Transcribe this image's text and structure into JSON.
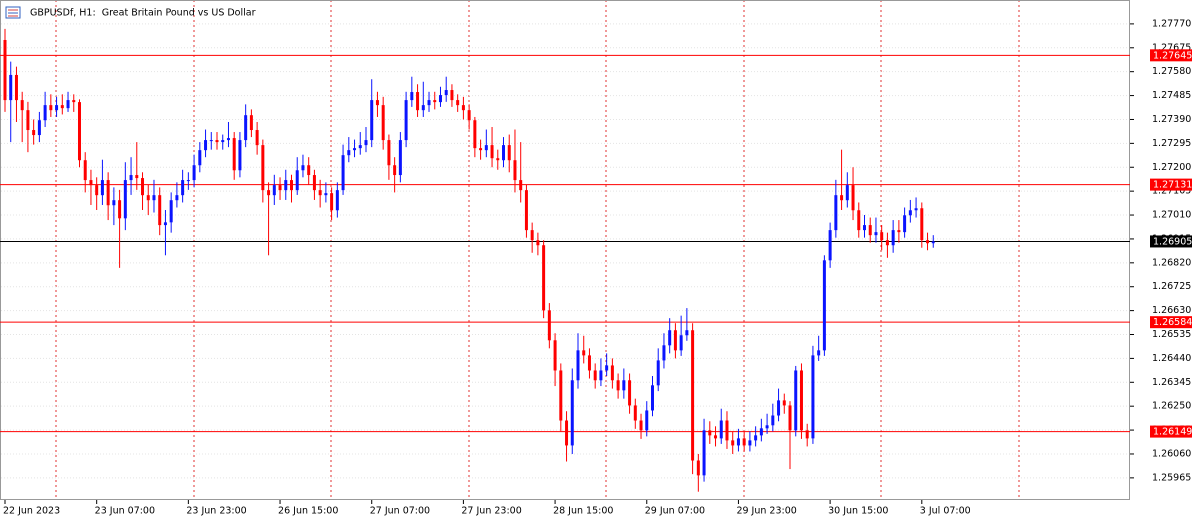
{
  "chart_data": {
    "type": "candlestick",
    "title": "GBPUSDf, H1:  Great Britain Pound vs US Dollar",
    "up_color": "#0a14ff",
    "down_color": "#ff0000",
    "grid": true,
    "ylim": [
      1.25877,
      1.27865
    ],
    "yticks": [
      {
        "value": 1.2777,
        "label": "1.27770"
      },
      1.27675,
      {
        "value": 1.2758,
        "label": "1.27580"
      },
      1.27485,
      {
        "value": 1.2739,
        "label": "1.27390"
      },
      1.27295,
      {
        "value": 1.272,
        "label": "1.27200"
      },
      1.27105,
      {
        "value": 1.2701,
        "label": "1.27010"
      },
      1.26915,
      {
        "value": 1.2682,
        "label": "1.26820"
      },
      1.26725,
      {
        "value": 1.2663,
        "label": "1.26630"
      },
      1.26535,
      {
        "value": 1.2644,
        "label": "1.26440"
      },
      1.26345,
      {
        "value": 1.2625,
        "label": "1.26250"
      },
      1.26155,
      {
        "value": 1.2606,
        "label": "1.26060"
      },
      1.25965
    ],
    "levels": [
      {
        "value": 1.27645,
        "color": "#ff0000"
      },
      {
        "value": 1.27131,
        "color": "#ff0000"
      },
      {
        "value": 1.26905,
        "color": "#000000"
      },
      {
        "value": 1.26584,
        "color": "#ff0000"
      },
      {
        "value": 1.26149,
        "color": "#ff0000"
      }
    ],
    "categories": [
      "22 Jun 2023",
      null,
      null,
      null,
      null,
      null,
      null,
      null,
      null,
      null,
      null,
      null,
      null,
      null,
      null,
      null,
      "23 Jun 07:00",
      null,
      null,
      null,
      null,
      null,
      null,
      null,
      null,
      null,
      null,
      null,
      null,
      null,
      null,
      null,
      "23 Jun 23:00",
      null,
      null,
      null,
      null,
      null,
      null,
      null,
      null,
      null,
      null,
      null,
      null,
      null,
      null,
      null,
      "26 Jun 15:00",
      null,
      null,
      null,
      null,
      null,
      null,
      null,
      null,
      null,
      null,
      null,
      null,
      null,
      null,
      null,
      "27 Jun 07:00",
      null,
      null,
      null,
      null,
      null,
      null,
      null,
      null,
      null,
      null,
      null,
      null,
      null,
      null,
      null,
      "27 Jun 23:00",
      null,
      null,
      null,
      null,
      null,
      null,
      null,
      null,
      null,
      null,
      null,
      null,
      null,
      null,
      null,
      "28 Jun 15:00",
      null,
      null,
      null,
      null,
      null,
      null,
      null,
      null,
      null,
      null,
      null,
      null,
      null,
      null,
      null,
      "29 Jun 07:00",
      null,
      null,
      null,
      null,
      null,
      null,
      null,
      null,
      null,
      null,
      null,
      null,
      null,
      null,
      null,
      "29 Jun 23:00",
      null,
      null,
      null,
      null,
      null,
      null,
      null,
      null,
      null,
      null,
      null,
      null,
      null,
      null,
      null,
      "30 Jun 15:00",
      null,
      null,
      null,
      null,
      null,
      null,
      null,
      null,
      null,
      null,
      null,
      null,
      null,
      null,
      null,
      "3 Jul 07:00",
      null,
      null
    ],
    "open": [
      1.27706,
      1.27467,
      1.27567,
      1.27467,
      1.27427,
      1.27348,
      1.27328,
      1.27387,
      1.27447,
      1.27427,
      1.27447,
      1.27435,
      1.27467,
      1.27459,
      1.27228,
      1.27149,
      1.27129,
      1.27089,
      1.27149,
      1.27049,
      1.27069,
      1.26997,
      1.27149,
      1.27169,
      1.27157,
      1.27089,
      1.27069,
      1.27089,
      1.2697,
      1.26981,
      1.27069,
      1.27089,
      1.27149,
      1.27149,
      1.27208,
      1.27268,
      1.27308,
      1.27308,
      1.273,
      1.27308,
      1.27316,
      1.27188,
      1.27308,
      1.27407,
      1.27348,
      1.27288,
      1.27109,
      1.27089,
      1.27129,
      1.27109,
      1.27149,
      1.27109,
      1.27188,
      1.27208,
      1.27169,
      1.27109,
      1.27089,
      1.27097,
      1.27029,
      1.27109,
      1.27248,
      1.27268,
      1.27276,
      1.27288,
      1.27308,
      1.27467,
      1.27447,
      1.27308,
      1.27208,
      1.27169,
      1.27308,
      1.27467,
      1.27499,
      1.27427,
      1.27447,
      1.27467,
      1.27459,
      1.27487,
      1.27507,
      1.27467,
      1.27447,
      1.27427,
      1.27387,
      1.27276,
      1.27268,
      1.27288,
      1.27236,
      1.27228,
      1.27288,
      1.27228,
      1.27149,
      1.27109,
      1.2695,
      1.2691,
      1.2689,
      1.26631,
      1.26512,
      1.26392,
      1.26193,
      1.26094,
      1.26353,
      1.26472,
      1.26452,
      1.26392,
      1.26353,
      1.26392,
      1.26412,
      1.26353,
      1.26313,
      1.26353,
      1.26253,
      1.26193,
      1.26154,
      1.26233,
      1.26333,
      1.26432,
      1.26492,
      1.26552,
      1.26472,
      1.26532,
      1.26552,
      1.26034,
      1.25975,
      1.26154,
      1.26134,
      1.26122,
      1.26193,
      1.26114,
      1.26094,
      1.26122,
      1.26094,
      1.26114,
      1.26134,
      1.26162,
      1.26174,
      1.26213,
      1.26273,
      1.26253,
      1.26154,
      1.26392,
      1.26154,
      1.26122,
      1.26452,
      1.26472,
      1.2683,
      1.2695,
      1.27089,
      1.27069,
      1.27129,
      1.27029,
      1.2695,
      1.2697,
      1.2693,
      1.26942,
      1.2691,
      1.2689,
      1.2695,
      1.26942,
      1.27009,
      1.27029,
      1.27037,
      1.2691,
      1.26898
    ],
    "high": [
      1.2775,
      1.2762,
      1.276,
      1.275,
      1.2746,
      1.2739,
      1.2742,
      1.275,
      1.2749,
      1.2748,
      1.2749,
      1.275,
      1.2749,
      1.2747,
      1.2726,
      1.2719,
      1.2716,
      1.2723,
      1.2718,
      1.2712,
      1.2711,
      1.2722,
      1.2724,
      1.273,
      1.2718,
      1.2713,
      1.2715,
      1.2712,
      1.2703,
      1.271,
      1.2714,
      1.2719,
      1.2718,
      1.2725,
      1.273,
      1.2735,
      1.2734,
      1.2734,
      1.2733,
      1.2738,
      1.2734,
      1.2734,
      1.2745,
      1.2743,
      1.2738,
      1.2731,
      1.2714,
      1.2717,
      1.2716,
      1.2719,
      1.2717,
      1.2724,
      1.2725,
      1.2724,
      1.2719,
      1.2715,
      1.2714,
      1.2712,
      1.2714,
      1.2729,
      1.2732,
      1.2731,
      1.2734,
      1.2736,
      1.2755,
      1.275,
      1.2748,
      1.2733,
      1.2724,
      1.2734,
      1.275,
      1.2756,
      1.2753,
      1.2754,
      1.275,
      1.275,
      1.2752,
      1.2756,
      1.2753,
      1.2749,
      1.2748,
      1.2745,
      1.274,
      1.2731,
      1.2735,
      1.2736,
      1.2727,
      1.2732,
      1.2733,
      1.2735,
      1.273,
      1.2713,
      1.2698,
      1.2694,
      1.2691,
      1.2666,
      1.2654,
      1.2642,
      1.2623,
      1.264,
      1.2654,
      1.2653,
      1.2648,
      1.2642,
      1.2644,
      1.2646,
      1.2644,
      1.2638,
      1.264,
      1.2638,
      1.2628,
      1.2622,
      1.2627,
      1.2637,
      1.2648,
      1.2654,
      1.266,
      1.2658,
      1.2661,
      1.2664,
      1.2658,
      1.2606,
      1.262,
      1.2619,
      1.2617,
      1.2624,
      1.2623,
      1.2615,
      1.2616,
      1.2615,
      1.2615,
      1.2617,
      1.262,
      1.2622,
      1.2626,
      1.2632,
      1.263,
      1.2627,
      1.2641,
      1.2642,
      1.2618,
      1.2649,
      1.2653,
      1.2685,
      1.2698,
      1.2715,
      1.2727,
      1.2718,
      1.272,
      1.2706,
      1.2701,
      1.27,
      1.27,
      1.2697,
      1.2694,
      1.2699,
      1.2699,
      1.2704,
      1.2707,
      1.2708,
      1.2706,
      1.2694,
      1.2693
    ],
    "low": [
      1.2742,
      1.273,
      1.2738,
      1.273,
      1.2726,
      1.2729,
      1.273,
      1.2736,
      1.274,
      1.274,
      1.2741,
      1.2742,
      1.2742,
      1.272,
      1.271,
      1.2705,
      1.2703,
      1.2705,
      1.2699,
      1.2697,
      1.268,
      1.2695,
      1.2709,
      1.2711,
      1.2703,
      1.2701,
      1.2702,
      1.2693,
      1.2685,
      1.2694,
      1.2704,
      1.2706,
      1.2711,
      1.2712,
      1.2718,
      1.2724,
      1.2727,
      1.2727,
      1.2727,
      1.2728,
      1.2715,
      1.2716,
      1.2728,
      1.2732,
      1.2725,
      1.2706,
      1.2685,
      1.2705,
      1.2707,
      1.2707,
      1.2706,
      1.2709,
      1.2716,
      1.2713,
      1.2707,
      1.2704,
      1.2706,
      1.2699,
      1.27,
      1.2709,
      1.2722,
      1.2724,
      1.2725,
      1.2726,
      1.2728,
      1.274,
      1.2727,
      1.2715,
      1.271,
      1.2714,
      1.2728,
      1.2744,
      1.274,
      1.274,
      1.2742,
      1.2743,
      1.2744,
      1.2746,
      1.2744,
      1.2742,
      1.2739,
      1.2735,
      1.2724,
      1.2723,
      1.2724,
      1.272,
      1.2719,
      1.272,
      1.2718,
      1.271,
      1.2706,
      1.2692,
      1.2686,
      1.2685,
      1.266,
      1.2648,
      1.2633,
      1.2615,
      1.2603,
      1.2606,
      1.2632,
      1.2642,
      1.2636,
      1.2632,
      1.2633,
      1.2637,
      1.2632,
      1.2628,
      1.2628,
      1.2622,
      1.2616,
      1.2612,
      1.2613,
      1.2621,
      1.2631,
      1.264,
      1.2646,
      1.2644,
      1.2645,
      1.2651,
      1.2598,
      1.2591,
      1.2595,
      1.261,
      1.2609,
      1.261,
      1.2608,
      1.2606,
      1.2607,
      1.2607,
      1.2607,
      1.2609,
      1.2611,
      1.2614,
      1.2615,
      1.2619,
      1.2622,
      1.26,
      1.2613,
      1.2612,
      1.2609,
      1.261,
      1.2643,
      1.2645,
      1.268,
      1.2692,
      1.2703,
      1.2704,
      1.2699,
      1.2692,
      1.2692,
      1.269,
      1.269,
      1.2687,
      1.2684,
      1.2686,
      1.269,
      1.2692,
      1.2698,
      1.27,
      1.2688,
      1.2687,
      1.2688
    ],
    "close": [
      1.27467,
      1.27567,
      1.27467,
      1.27427,
      1.27348,
      1.27328,
      1.27387,
      1.27447,
      1.27427,
      1.27447,
      1.27435,
      1.27467,
      1.27459,
      1.27228,
      1.27149,
      1.27129,
      1.27089,
      1.27149,
      1.27049,
      1.27069,
      1.26997,
      1.27149,
      1.27169,
      1.27157,
      1.27089,
      1.27069,
      1.27089,
      1.2697,
      1.26981,
      1.27069,
      1.27089,
      1.27149,
      1.27149,
      1.27208,
      1.27268,
      1.27308,
      1.27308,
      1.273,
      1.27308,
      1.27316,
      1.27188,
      1.27308,
      1.27407,
      1.27348,
      1.27288,
      1.27109,
      1.27089,
      1.27129,
      1.27109,
      1.27149,
      1.27109,
      1.27188,
      1.27208,
      1.27169,
      1.27109,
      1.27089,
      1.27097,
      1.27029,
      1.27109,
      1.27248,
      1.27268,
      1.27276,
      1.27288,
      1.27308,
      1.27467,
      1.27447,
      1.27308,
      1.27208,
      1.27169,
      1.27308,
      1.27467,
      1.27499,
      1.27427,
      1.27447,
      1.27467,
      1.27459,
      1.27487,
      1.27507,
      1.27467,
      1.27447,
      1.27427,
      1.27387,
      1.27276,
      1.27268,
      1.27288,
      1.27236,
      1.27228,
      1.27288,
      1.27228,
      1.27149,
      1.27109,
      1.2695,
      1.2691,
      1.2689,
      1.26631,
      1.26512,
      1.26392,
      1.26193,
      1.26094,
      1.26353,
      1.26472,
      1.26452,
      1.26392,
      1.26353,
      1.26392,
      1.26412,
      1.26353,
      1.26313,
      1.26353,
      1.26253,
      1.26193,
      1.26154,
      1.26233,
      1.26333,
      1.26432,
      1.26492,
      1.26552,
      1.26472,
      1.26532,
      1.26552,
      1.26034,
      1.25975,
      1.26154,
      1.26134,
      1.26122,
      1.26193,
      1.26114,
      1.26094,
      1.26122,
      1.26094,
      1.26114,
      1.26134,
      1.26162,
      1.26174,
      1.26213,
      1.26273,
      1.26253,
      1.26154,
      1.26392,
      1.26154,
      1.26122,
      1.26452,
      1.26472,
      1.2683,
      1.2695,
      1.27089,
      1.27069,
      1.27129,
      1.27029,
      1.2695,
      1.2697,
      1.2693,
      1.26942,
      1.2691,
      1.2689,
      1.2695,
      1.26942,
      1.27009,
      1.27029,
      1.27037,
      1.2691,
      1.26898,
      1.26905
    ]
  }
}
